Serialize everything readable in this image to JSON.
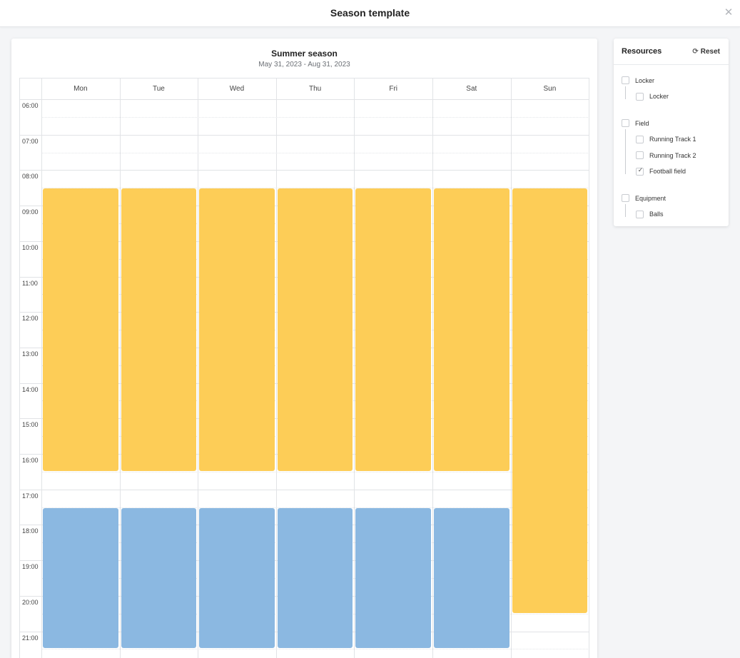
{
  "modal": {
    "title": "Season template",
    "close_icon": "close-icon"
  },
  "season": {
    "name": "Summer season",
    "range": "May 31, 2023 - Aug 31, 2023"
  },
  "calendar": {
    "days": [
      "Mon",
      "Tue",
      "Wed",
      "Thu",
      "Fri",
      "Sat",
      "Sun"
    ],
    "hours": [
      "06:00",
      "07:00",
      "08:00",
      "09:00",
      "10:00",
      "11:00",
      "12:00",
      "13:00",
      "14:00",
      "15:00",
      "16:00",
      "17:00",
      "18:00",
      "19:00",
      "20:00",
      "21:00"
    ],
    "start_hour": 6,
    "colors": {
      "yellow": "#fdcd57",
      "blue": "#8bb8e1"
    },
    "events": [
      {
        "day": 0,
        "start": 8.5,
        "end": 16.5,
        "color": "yellow"
      },
      {
        "day": 1,
        "start": 8.5,
        "end": 16.5,
        "color": "yellow"
      },
      {
        "day": 2,
        "start": 8.5,
        "end": 16.5,
        "color": "yellow"
      },
      {
        "day": 3,
        "start": 8.5,
        "end": 16.5,
        "color": "yellow"
      },
      {
        "day": 4,
        "start": 8.5,
        "end": 16.5,
        "color": "yellow"
      },
      {
        "day": 5,
        "start": 8.5,
        "end": 16.5,
        "color": "yellow"
      },
      {
        "day": 6,
        "start": 8.5,
        "end": 20.5,
        "color": "yellow"
      },
      {
        "day": 0,
        "start": 17.5,
        "end": 21.5,
        "color": "blue"
      },
      {
        "day": 1,
        "start": 17.5,
        "end": 21.5,
        "color": "blue"
      },
      {
        "day": 2,
        "start": 17.5,
        "end": 21.5,
        "color": "blue"
      },
      {
        "day": 3,
        "start": 17.5,
        "end": 21.5,
        "color": "blue"
      },
      {
        "day": 4,
        "start": 17.5,
        "end": 21.5,
        "color": "blue"
      },
      {
        "day": 5,
        "start": 17.5,
        "end": 21.5,
        "color": "blue"
      }
    ]
  },
  "resources": {
    "title": "Resources",
    "reset_label": "Reset",
    "reset_icon": "refresh-icon",
    "groups": [
      {
        "label": "Locker",
        "checked": false,
        "children": [
          {
            "label": "Locker",
            "checked": false
          }
        ]
      },
      {
        "label": "Field",
        "checked": false,
        "children": [
          {
            "label": "Running Track 1",
            "checked": false
          },
          {
            "label": "Running Track 2",
            "checked": false
          },
          {
            "label": "Football field",
            "checked": true
          }
        ]
      },
      {
        "label": "Equipment",
        "checked": false,
        "children": [
          {
            "label": "Balls",
            "checked": false
          }
        ]
      }
    ]
  }
}
